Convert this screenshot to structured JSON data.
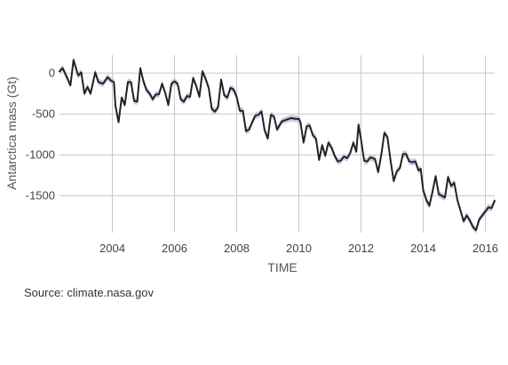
{
  "chart_data": {
    "type": "line",
    "xlabel": "TIME",
    "ylabel": "Antarctica mass (Gt)",
    "x_ticks": [
      2004,
      2006,
      2008,
      2010,
      2012,
      2014,
      2016
    ],
    "y_ticks": [
      0,
      -500,
      -1000,
      -1500
    ],
    "y_tick_labels": [
      "0",
      "-500",
      "-1000",
      "-1500"
    ],
    "xlim": [
      2002.3,
      2016.3
    ],
    "ylim": [
      -1950,
      220
    ],
    "grid": true,
    "legend": "none",
    "uncertainty_band": 40,
    "colors": {
      "line": "#222222",
      "band": "#c8c8e6",
      "grid": "#c8c8c8"
    },
    "series": [
      {
        "x": [
          2002.3,
          2002.4,
          2002.5,
          2002.65,
          2002.75,
          2002.9,
          2003.0,
          2003.1,
          2003.2,
          2003.3,
          2003.45,
          2003.55,
          2003.7,
          2003.85,
          2003.95,
          2004.05,
          2004.1,
          2004.2,
          2004.3,
          2004.4,
          2004.5,
          2004.6,
          2004.7,
          2004.8,
          2004.9,
          2005.0,
          2005.1,
          2005.2,
          2005.3,
          2005.4,
          2005.5,
          2005.6,
          2005.7,
          2005.8,
          2005.9,
          2006.0,
          2006.1,
          2006.2,
          2006.3,
          2006.4,
          2006.5,
          2006.6,
          2006.7,
          2006.8,
          2006.9,
          2007.0,
          2007.1,
          2007.2,
          2007.3,
          2007.4,
          2007.5,
          2007.6,
          2007.7,
          2007.8,
          2007.9,
          2008.0,
          2008.1,
          2008.2,
          2008.3,
          2008.4,
          2008.5,
          2008.6,
          2008.7,
          2008.8,
          2008.9,
          2009.0,
          2009.1,
          2009.2,
          2009.3,
          2009.45,
          2009.6,
          2009.75,
          2009.9,
          2010.0,
          2010.05,
          2010.15,
          2010.25,
          2010.35,
          2010.45,
          2010.55,
          2010.65,
          2010.75,
          2010.85,
          2010.95,
          2011.05,
          2011.15,
          2011.25,
          2011.35,
          2011.45,
          2011.55,
          2011.65,
          2011.75,
          2011.85,
          2011.92,
          2012.0,
          2012.1,
          2012.2,
          2012.3,
          2012.45,
          2012.55,
          2012.65,
          2012.75,
          2012.85,
          2012.95,
          2013.05,
          2013.15,
          2013.25,
          2013.35,
          2013.45,
          2013.55,
          2013.65,
          2013.75,
          2013.85,
          2013.92,
          2014.0,
          2014.1,
          2014.2,
          2014.3,
          2014.4,
          2014.5,
          2014.6,
          2014.7,
          2014.8,
          2014.9,
          2015.0,
          2015.1,
          2015.2,
          2015.3,
          2015.4,
          2015.5,
          2015.6,
          2015.7,
          2015.8,
          2015.9,
          2016.0,
          2016.1,
          2016.2,
          2016.3
        ],
        "y": [
          20,
          60,
          -20,
          -150,
          160,
          -30,
          10,
          -250,
          -170,
          -250,
          10,
          -110,
          -130,
          -50,
          -90,
          -110,
          -400,
          -600,
          -300,
          -390,
          -110,
          -110,
          -340,
          -350,
          60,
          -100,
          -210,
          -250,
          -320,
          -260,
          -260,
          -130,
          -240,
          -390,
          -130,
          -100,
          -130,
          -320,
          -350,
          -280,
          -290,
          -60,
          -160,
          -290,
          20,
          -70,
          -180,
          -440,
          -470,
          -420,
          -80,
          -270,
          -300,
          -180,
          -200,
          -290,
          -460,
          -460,
          -710,
          -690,
          -600,
          -520,
          -510,
          -470,
          -700,
          -800,
          -510,
          -530,
          -690,
          -590,
          -570,
          -550,
          -560,
          -560,
          -600,
          -850,
          -650,
          -640,
          -760,
          -800,
          -1060,
          -880,
          -1010,
          -850,
          -910,
          -1010,
          -1080,
          -1070,
          -1020,
          -1040,
          -980,
          -850,
          -960,
          -630,
          -810,
          -1070,
          -1080,
          -1030,
          -1050,
          -1210,
          -1000,
          -730,
          -780,
          -1070,
          -1320,
          -1200,
          -1160,
          -990,
          -990,
          -1080,
          -1090,
          -1080,
          -1190,
          -1170,
          -1430,
          -1550,
          -1620,
          -1450,
          -1260,
          -1480,
          -1500,
          -1520,
          -1270,
          -1380,
          -1340,
          -1550,
          -1680,
          -1810,
          -1740,
          -1800,
          -1880,
          -1920,
          -1790,
          -1740,
          -1690,
          -1640,
          -1650,
          -1560
        ]
      }
    ]
  },
  "source": {
    "text": "Source: climate.nasa.gov"
  }
}
